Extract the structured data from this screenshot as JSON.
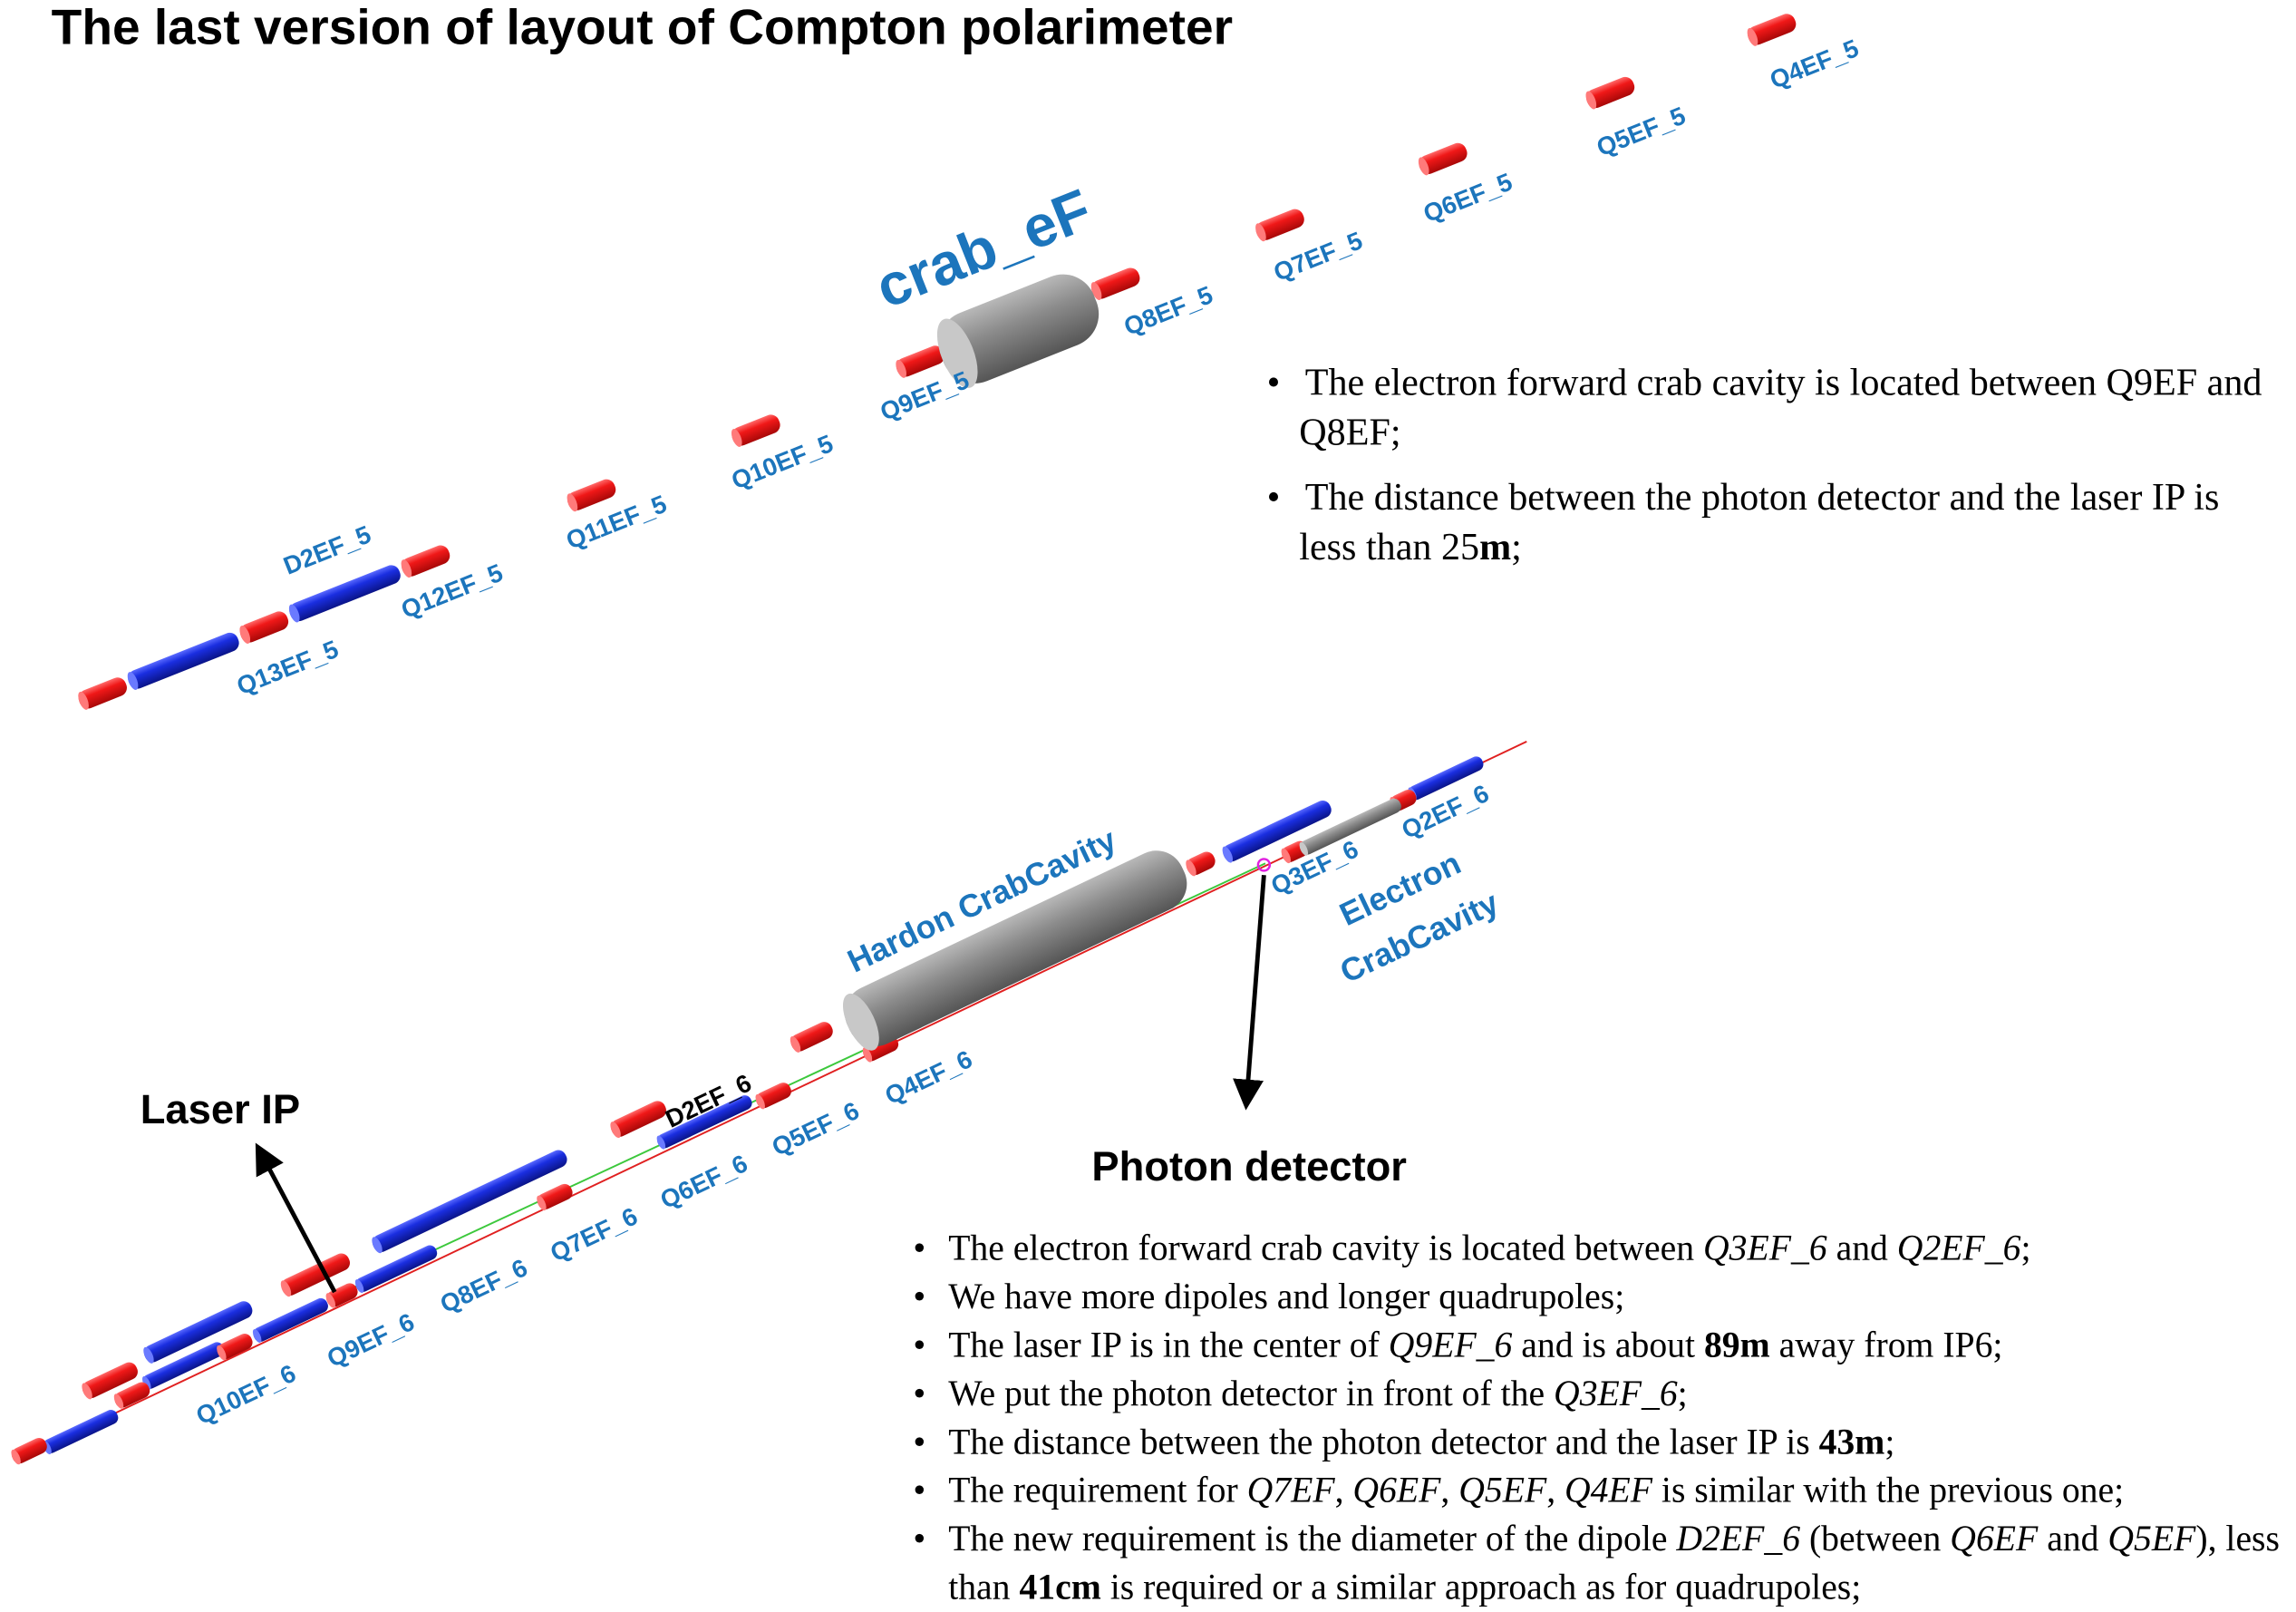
{
  "title": "The last version of layout of Compton polarimeter",
  "upper_diagram": {
    "crab_label": "crab_eF",
    "labels": [
      "D2EF_5",
      "Q13EF_5",
      "Q12EF_5",
      "Q11EF_5",
      "Q10EF_5",
      "Q9EF_5",
      "Q8EF_5",
      "Q7EF_5",
      "Q6EF_5",
      "Q5EF_5",
      "Q4EF_5"
    ]
  },
  "upper_notes": [
    [
      "The electron forward crab cavity is located between Q9EF and Q8EF;"
    ],
    [
      "The distance between the photon detector and the laser IP is less than 25",
      {
        "text": "m",
        "style": "bold"
      },
      ";"
    ]
  ],
  "lower_diagram": {
    "hadron_crab_label": "Hardon CrabCavity",
    "electron_crab_label": [
      "Electron",
      "CrabCavity"
    ],
    "dipole_label": "D2EF_6",
    "labels": [
      "Q10EF_6",
      "Q9EF_6",
      "Q8EF_6",
      "Q7EF_6",
      "Q6EF_6",
      "Q5EF_6",
      "Q4EF_6",
      "Q3EF_6",
      "Q2EF_6"
    ],
    "laser_ip": "Laser IP",
    "photon_detector": "Photon detector"
  },
  "lower_notes": [
    [
      " The electron forward crab cavity is located between ",
      {
        "text": "Q3EF_6",
        "style": "italic"
      },
      " and ",
      {
        "text": "Q2EF_6",
        "style": "italic"
      },
      ";"
    ],
    [
      " We have more dipoles and longer quadrupoles;"
    ],
    [
      "The laser IP is in the center of ",
      {
        "text": "Q9EF_6",
        "style": "italic"
      },
      "  and is about ",
      {
        "text": "89m",
        "style": "bold"
      },
      " away from IP6;"
    ],
    [
      "We put the photon detector in front of the ",
      {
        "text": "Q3EF_6",
        "style": "italic"
      },
      ";"
    ],
    [
      "The distance between the photon detector and the laser IP is ",
      {
        "text": "43m",
        "style": "bold"
      },
      ";"
    ],
    [
      "The requirement for ",
      {
        "text": "Q7EF",
        "style": "italic"
      },
      ", ",
      {
        "text": "Q6EF",
        "style": "italic"
      },
      ", ",
      {
        "text": "Q5EF",
        "style": "italic"
      },
      ", ",
      {
        "text": "Q4EF",
        "style": "italic"
      },
      " is similar with the previous one;"
    ],
    [
      "The new requirement is the diameter of the dipole ",
      {
        "text": "D2EF_6",
        "style": "italic"
      },
      " (between ",
      {
        "text": "Q6EF",
        "style": "italic"
      },
      " and ",
      {
        "text": "Q5EF",
        "style": "italic"
      },
      "), less than ",
      {
        "text": "41cm",
        "style": "bold"
      },
      " is required or a similar approach as for quadrupoles;"
    ]
  ]
}
